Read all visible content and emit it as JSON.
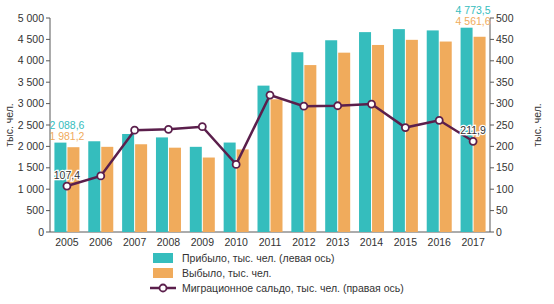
{
  "chart_data": {
    "type": "bar",
    "y_label": "тыс. чел.",
    "y2_label": "тыс. чел.",
    "categories": [
      "2005",
      "2006",
      "2007",
      "2008",
      "2009",
      "2010",
      "2011",
      "2012",
      "2013",
      "2014",
      "2015",
      "2016",
      "2017"
    ],
    "series": [
      {
        "name": "Прибыло, тыс. чел. (левая ось)",
        "type": "bar",
        "color": "#35bdbd",
        "values": [
          2088.6,
          2120,
          2290,
          2210,
          1990,
          2090,
          3420,
          4200,
          4480,
          4670,
          4740,
          4710,
          4773.5
        ],
        "value_labels": [
          "2 088,6",
          null,
          null,
          null,
          null,
          null,
          null,
          null,
          null,
          null,
          null,
          null,
          "4 773,5"
        ]
      },
      {
        "name": "Выбыло, тыс. чел.",
        "type": "bar",
        "color": "#f0ab5c",
        "values": [
          1981.2,
          1990,
          2050,
          1970,
          1740,
          1930,
          3100,
          3900,
          4190,
          4370,
          4490,
          4450,
          4561.6
        ],
        "value_labels": [
          "1 981,2",
          null,
          null,
          null,
          null,
          null,
          null,
          null,
          null,
          null,
          null,
          null,
          "4 561,6"
        ]
      },
      {
        "name": "Миграционное сальдо, тыс. чел. (правая ось)",
        "type": "line",
        "axis": "y2",
        "color": "#5b1f4c",
        "marker": "circle",
        "values": [
          107.4,
          131,
          238,
          240,
          246,
          158,
          320,
          294,
          295,
          299,
          244,
          261,
          211.9
        ],
        "value_labels": [
          "107,4",
          null,
          null,
          null,
          null,
          null,
          null,
          null,
          null,
          null,
          null,
          null,
          "211,9"
        ]
      }
    ],
    "ylim": [
      0,
      5000
    ],
    "yticks": [
      0,
      500,
      {
        "value": 1000,
        "label": "1 000"
      },
      {
        "value": 1500,
        "label": "1 500"
      },
      {
        "value": 2000,
        "label": "2 000"
      },
      {
        "value": 2500,
        "label": "2 500"
      },
      {
        "value": 3000,
        "label": "3 000"
      },
      {
        "value": 3500,
        "label": "3 500"
      },
      {
        "value": 4000,
        "label": "4 000"
      },
      {
        "value": 4500,
        "label": "4 500"
      },
      {
        "value": 5000,
        "label": "5 000"
      }
    ],
    "y2lim": [
      0,
      500
    ],
    "y2ticks": [
      0,
      50,
      100,
      150,
      200,
      250,
      300,
      350,
      400,
      450,
      500
    ],
    "data_labels": true,
    "grid": false,
    "legend": "bottom"
  }
}
